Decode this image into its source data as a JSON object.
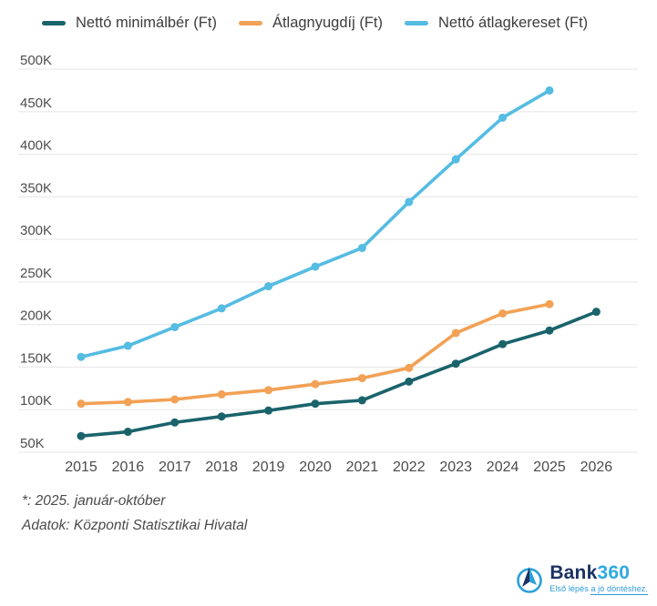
{
  "chart_data": {
    "type": "line",
    "x": [
      "2015",
      "2016",
      "2017",
      "2018",
      "2019",
      "2020",
      "2021",
      "2022",
      "2023",
      "2024",
      "2025",
      "2026"
    ],
    "series": [
      {
        "id": "netto-minimalber",
        "name": "Nettó minimálbér (Ft)",
        "color": "#1a636b",
        "values": [
          69000,
          74000,
          85000,
          92000,
          99000,
          107000,
          111000,
          133000,
          154000,
          177000,
          193000,
          215000
        ]
      },
      {
        "id": "atlagnyugdij",
        "name": "Átlagnyugdíj (Ft)",
        "color": "#f2a155",
        "values": [
          107000,
          109000,
          112000,
          118000,
          123000,
          130000,
          137000,
          149000,
          190000,
          213000,
          224000,
          null
        ]
      },
      {
        "id": "netto-atlagkereset",
        "name": "Nettó átlagkereset (Ft)",
        "color": "#55bce2",
        "values": [
          162000,
          175000,
          197000,
          219000,
          245000,
          268000,
          290000,
          344000,
          394000,
          443000,
          475000,
          null
        ]
      }
    ],
    "title": "",
    "xlabel": "",
    "ylabel": "",
    "ylim": [
      50000,
      500000
    ],
    "ytick_step": 50000,
    "ytick_labels": [
      "50K",
      "100K",
      "150K",
      "200K",
      "250K",
      "300K",
      "350K",
      "400K",
      "450K",
      "500K"
    ],
    "grid": "horizontal",
    "gridline_color": "#ebebeb",
    "legend_position": "top",
    "markers": "circle"
  },
  "footnotes": [
    "*: 2025. január-október",
    "Adatok: Központi Statisztikai Hivatal"
  ],
  "logo": {
    "brand_bank": "Bank",
    "brand_360": "360",
    "tagline_plain": "Első lépés",
    "tagline_underlined": "a jó döntéshez."
  }
}
